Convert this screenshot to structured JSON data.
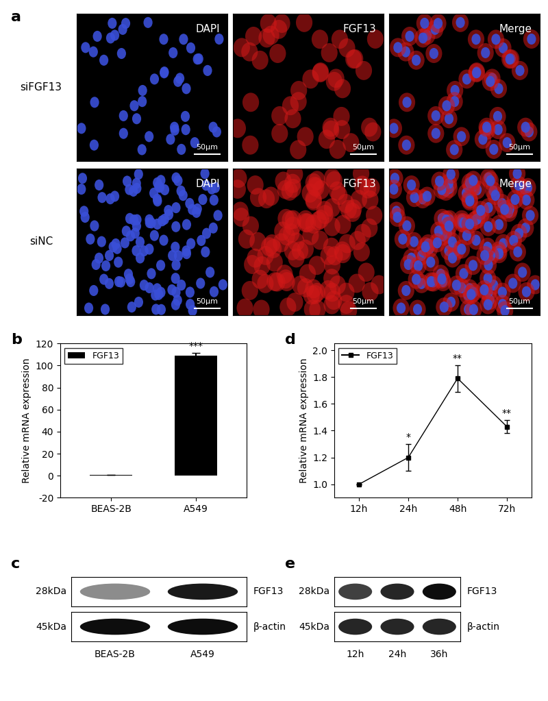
{
  "panel_labels": [
    "a",
    "b",
    "c",
    "d",
    "e"
  ],
  "microscopy": {
    "channels": [
      "DAPI",
      "FGF13",
      "Merge"
    ],
    "rows": [
      "siFGF13",
      "siNC"
    ],
    "scale_bar": "50μm"
  },
  "chart_data": [
    {
      "type": "bar",
      "categories": [
        "BEAS-2B",
        "A549"
      ],
      "series": [
        {
          "name": "FGF13",
          "color": "#000000",
          "values": [
            1,
            109
          ],
          "errors": [
            0,
            2.5
          ]
        }
      ],
      "annotations": [
        null,
        "***"
      ],
      "ylabel": "Relative mRNA expression",
      "ylim": [
        -20,
        120
      ],
      "yticks": [
        -20,
        0,
        20,
        40,
        60,
        80,
        100,
        120
      ],
      "legend": "upper left"
    },
    {
      "type": "line",
      "categories": [
        "12h",
        "24h",
        "48h",
        "72h"
      ],
      "series": [
        {
          "name": "FGF13",
          "color": "#000000",
          "values": [
            1.0,
            1.2,
            1.79,
            1.43
          ],
          "errors": [
            0,
            0.1,
            0.1,
            0.05
          ],
          "marker": "square"
        }
      ],
      "annotations": [
        null,
        "*",
        "**",
        "**"
      ],
      "ylabel": "Relative mRNA expression",
      "ylim": [
        0.9,
        2.05
      ],
      "yticks": [
        1.0,
        1.2,
        1.4,
        1.6,
        1.8,
        2.0
      ],
      "legend": "upper left"
    }
  ],
  "blots": [
    {
      "rows": [
        {
          "size": "28kDa",
          "protein": "FGF13"
        },
        {
          "size": "45kDa",
          "protein": "β-actin"
        }
      ],
      "lanes": [
        "BEAS-2B",
        "A549"
      ]
    },
    {
      "rows": [
        {
          "size": "28kDa",
          "protein": "FGF13"
        },
        {
          "size": "45kDa",
          "protein": "β-actin"
        }
      ],
      "lanes": [
        "12h",
        "24h",
        "36h"
      ]
    }
  ]
}
